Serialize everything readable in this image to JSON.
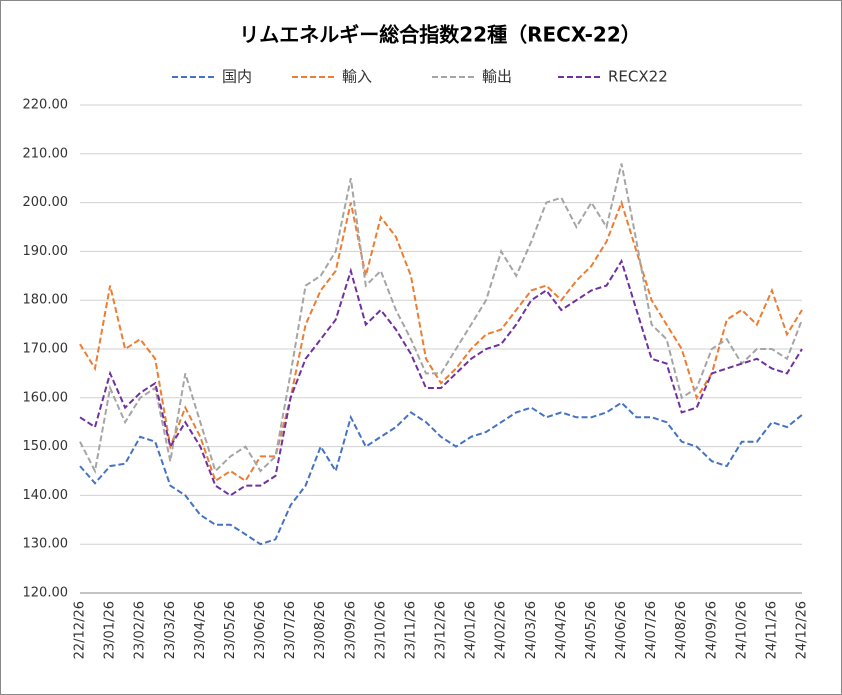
{
  "chart_data": {
    "type": "line",
    "title": "リムエネルギー総合指数22種（RECX-22）",
    "categories": [
      "22/12/26",
      null,
      "23/01/26",
      null,
      "23/02/26",
      null,
      "23/03/26",
      null,
      "23/04/26",
      null,
      "23/05/26",
      null,
      "23/06/26",
      null,
      "23/07/26",
      null,
      "23/08/26",
      null,
      "23/09/26",
      null,
      "23/10/26",
      null,
      "23/11/26",
      null,
      "23/12/26",
      null,
      "24/01/26",
      null,
      "24/02/26",
      null,
      "24/03/26",
      null,
      "24/04/26",
      null,
      "24/05/26",
      null,
      "24/06/26",
      null,
      "24/07/26",
      null,
      "24/08/26",
      null,
      "24/09/26",
      null,
      "24/10/26",
      null,
      "24/11/26",
      null,
      "24/12/26"
    ],
    "series": [
      {
        "name": "国内",
        "color": "#4472c4",
        "values": [
          146,
          142.5,
          146,
          146.5,
          152,
          151,
          142,
          140,
          136,
          134,
          134,
          132,
          130,
          131,
          138,
          142,
          150,
          145,
          156,
          150,
          152,
          154,
          157,
          155,
          152,
          150,
          152,
          153,
          155,
          157,
          158,
          156,
          157,
          156,
          156,
          157,
          159,
          156,
          156,
          155,
          151,
          150,
          147,
          146,
          151,
          151,
          155,
          154,
          156.5
        ]
      },
      {
        "name": "輸入",
        "color": "#ed7d31",
        "values": [
          171,
          166,
          183,
          170,
          172,
          168,
          150,
          158,
          152,
          143,
          145,
          143,
          148,
          148,
          160,
          175,
          182,
          186,
          200,
          185,
          197,
          193,
          185,
          168,
          163,
          166,
          170,
          173,
          174,
          178,
          182,
          183,
          180,
          184,
          187,
          192,
          200,
          190,
          180,
          175,
          170,
          160,
          165,
          176,
          178,
          175,
          182,
          173,
          178
        ]
      },
      {
        "name": "輸出",
        "color": "#a5a5a5",
        "values": [
          151,
          145,
          162,
          155,
          160,
          162,
          147,
          165,
          155,
          145,
          148,
          150,
          145,
          148,
          165,
          183,
          185,
          190,
          205,
          183,
          186,
          178,
          172,
          165,
          165,
          170,
          175,
          180,
          190,
          185,
          192,
          200,
          201,
          195,
          200,
          195,
          208,
          192,
          175,
          172,
          160,
          162,
          170,
          172,
          167,
          170,
          170,
          168,
          176
        ]
      },
      {
        "name": "RECX22",
        "color": "#7030a0",
        "values": [
          156,
          154,
          165,
          158,
          161,
          163,
          150,
          155,
          150,
          142,
          140,
          142,
          142,
          144,
          160,
          168,
          172,
          176,
          186,
          175,
          178,
          174,
          169,
          162,
          162,
          165,
          168,
          170,
          171,
          175,
          180,
          182,
          178,
          180,
          182,
          183,
          188,
          178,
          168,
          167,
          157,
          158,
          165,
          166,
          167,
          168,
          166,
          165,
          170
        ]
      }
    ],
    "ylim": [
      120,
      220
    ],
    "yticks": [
      {
        "value": 120,
        "label": "120.00"
      },
      {
        "value": 130,
        "label": "130.00"
      },
      {
        "value": 140,
        "label": "140.00"
      },
      {
        "value": 150,
        "label": "150.00"
      },
      {
        "value": 160,
        "label": "160.00"
      },
      {
        "value": 170,
        "label": "170.00"
      },
      {
        "value": 180,
        "label": "180.00"
      },
      {
        "value": 190,
        "label": "190.00"
      },
      {
        "value": 200,
        "label": "200.00"
      },
      {
        "value": 210,
        "label": "210.00"
      },
      {
        "value": 220,
        "label": "220.00"
      }
    ],
    "grid": true,
    "legend": "top",
    "line_style": "dashed"
  }
}
